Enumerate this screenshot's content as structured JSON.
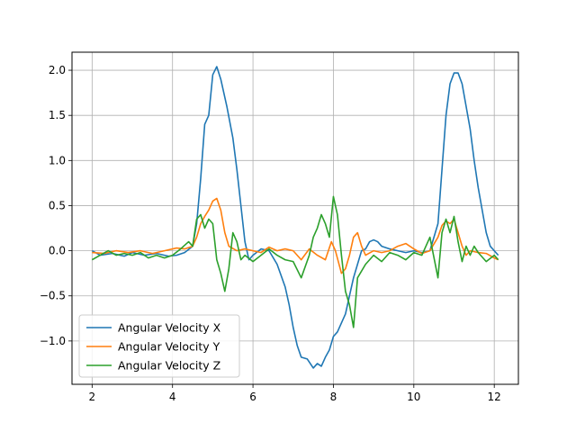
{
  "chart_data": {
    "type": "line",
    "title": "",
    "xlabel": "",
    "ylabel": "",
    "xlim": [
      1.5,
      12.6
    ],
    "ylim": [
      -1.48,
      2.2
    ],
    "xticks": [
      2,
      4,
      6,
      8,
      10,
      12
    ],
    "yticks": [
      -1.0,
      -0.5,
      0.0,
      0.5,
      1.0,
      1.5,
      2.0
    ],
    "xtick_labels": [
      "2",
      "4",
      "6",
      "8",
      "10",
      "12"
    ],
    "ytick_labels": [
      "−1.0",
      "−0.5",
      "0.0",
      "0.5",
      "1.0",
      "1.5",
      "2.0"
    ],
    "grid": true,
    "legend_position": "lower-left",
    "series": [
      {
        "name": "Angular Velocity X",
        "color": "#1f77b4",
        "x": [
          2.0,
          2.2,
          2.5,
          2.8,
          3.0,
          3.3,
          3.6,
          3.9,
          4.1,
          4.3,
          4.5,
          4.6,
          4.7,
          4.8,
          4.9,
          5.0,
          5.1,
          5.2,
          5.35,
          5.5,
          5.6,
          5.7,
          5.8,
          5.9,
          6.0,
          6.2,
          6.4,
          6.6,
          6.8,
          6.9,
          7.0,
          7.1,
          7.2,
          7.35,
          7.5,
          7.6,
          7.7,
          7.8,
          7.9,
          8.0,
          8.1,
          8.2,
          8.3,
          8.4,
          8.5,
          8.6,
          8.7,
          8.8,
          8.9,
          9.0,
          9.1,
          9.2,
          9.4,
          9.6,
          9.8,
          10.0,
          10.2,
          10.4,
          10.6,
          10.7,
          10.8,
          10.9,
          11.0,
          11.1,
          11.2,
          11.3,
          11.4,
          11.5,
          11.6,
          11.7,
          11.8,
          11.9,
          12.0,
          12.1
        ],
        "y": [
          0.0,
          -0.05,
          -0.03,
          -0.06,
          -0.02,
          -0.05,
          -0.03,
          -0.06,
          -0.05,
          -0.02,
          0.05,
          0.3,
          0.8,
          1.4,
          1.5,
          1.95,
          2.04,
          1.9,
          1.6,
          1.25,
          0.9,
          0.5,
          0.1,
          -0.1,
          -0.05,
          0.02,
          0.0,
          -0.15,
          -0.4,
          -0.6,
          -0.85,
          -1.05,
          -1.18,
          -1.2,
          -1.3,
          -1.25,
          -1.28,
          -1.18,
          -1.1,
          -0.95,
          -0.9,
          -0.8,
          -0.7,
          -0.5,
          -0.3,
          -0.15,
          0.0,
          0.02,
          0.1,
          0.12,
          0.1,
          0.05,
          0.02,
          0.0,
          -0.02,
          0.0,
          -0.02,
          0.0,
          0.3,
          0.9,
          1.5,
          1.85,
          1.97,
          1.97,
          1.85,
          1.6,
          1.35,
          1.0,
          0.7,
          0.45,
          0.2,
          0.05,
          0.0,
          -0.05
        ]
      },
      {
        "name": "Angular Velocity Y",
        "color": "#ff7f0e",
        "x": [
          2.0,
          2.3,
          2.6,
          2.9,
          3.2,
          3.5,
          3.8,
          4.1,
          4.3,
          4.5,
          4.6,
          4.7,
          4.8,
          4.9,
          5.0,
          5.1,
          5.2,
          5.3,
          5.4,
          5.6,
          5.8,
          6.0,
          6.2,
          6.4,
          6.6,
          6.8,
          7.0,
          7.2,
          7.4,
          7.6,
          7.8,
          7.95,
          8.05,
          8.2,
          8.3,
          8.4,
          8.5,
          8.6,
          8.7,
          8.8,
          9.0,
          9.2,
          9.4,
          9.6,
          9.8,
          10.0,
          10.2,
          10.4,
          10.6,
          10.7,
          10.8,
          10.9,
          11.0,
          11.1,
          11.2,
          11.3,
          11.4,
          11.6,
          11.8,
          12.0,
          12.1
        ],
        "y": [
          -0.02,
          -0.03,
          0.0,
          -0.02,
          0.0,
          -0.03,
          0.0,
          0.03,
          0.02,
          0.05,
          0.15,
          0.3,
          0.38,
          0.45,
          0.55,
          0.58,
          0.45,
          0.2,
          0.05,
          0.0,
          0.02,
          0.0,
          -0.02,
          0.04,
          0.0,
          0.02,
          0.0,
          -0.1,
          0.02,
          -0.05,
          -0.1,
          0.1,
          0.0,
          -0.25,
          -0.2,
          -0.05,
          0.15,
          0.2,
          0.05,
          -0.05,
          0.0,
          -0.02,
          0.0,
          0.05,
          0.08,
          0.02,
          -0.03,
          0.0,
          0.15,
          0.28,
          0.33,
          0.3,
          0.35,
          0.2,
          0.05,
          -0.05,
          0.0,
          -0.02,
          -0.03,
          -0.08,
          -0.1
        ]
      },
      {
        "name": "Angular Velocity Z",
        "color": "#2ca02c",
        "x": [
          2.0,
          2.2,
          2.4,
          2.6,
          2.8,
          3.0,
          3.2,
          3.4,
          3.6,
          3.8,
          4.0,
          4.2,
          4.4,
          4.5,
          4.6,
          4.7,
          4.8,
          4.9,
          5.0,
          5.1,
          5.2,
          5.3,
          5.4,
          5.5,
          5.6,
          5.7,
          5.8,
          6.0,
          6.2,
          6.4,
          6.6,
          6.8,
          7.0,
          7.2,
          7.4,
          7.5,
          7.6,
          7.7,
          7.8,
          7.9,
          8.0,
          8.1,
          8.2,
          8.3,
          8.4,
          8.5,
          8.6,
          8.8,
          9.0,
          9.2,
          9.4,
          9.6,
          9.8,
          10.0,
          10.2,
          10.4,
          10.6,
          10.7,
          10.8,
          10.9,
          11.0,
          11.1,
          11.2,
          11.3,
          11.4,
          11.5,
          11.6,
          11.8,
          12.0,
          12.1
        ],
        "y": [
          -0.1,
          -0.05,
          0.0,
          -0.05,
          -0.03,
          -0.05,
          -0.02,
          -0.08,
          -0.05,
          -0.08,
          -0.05,
          0.02,
          0.1,
          0.05,
          0.35,
          0.4,
          0.25,
          0.35,
          0.3,
          -0.1,
          -0.25,
          -0.45,
          -0.2,
          0.2,
          0.1,
          -0.1,
          -0.05,
          -0.12,
          -0.05,
          0.02,
          -0.05,
          -0.1,
          -0.12,
          -0.3,
          -0.05,
          0.15,
          0.25,
          0.4,
          0.3,
          0.15,
          0.6,
          0.4,
          -0.05,
          -0.45,
          -0.6,
          -0.85,
          -0.3,
          -0.15,
          -0.05,
          -0.12,
          -0.02,
          -0.05,
          -0.1,
          -0.02,
          -0.05,
          0.15,
          -0.3,
          0.2,
          0.35,
          0.2,
          0.38,
          0.1,
          -0.12,
          0.05,
          -0.05,
          0.05,
          -0.02,
          -0.12,
          -0.05,
          -0.1
        ]
      }
    ]
  }
}
